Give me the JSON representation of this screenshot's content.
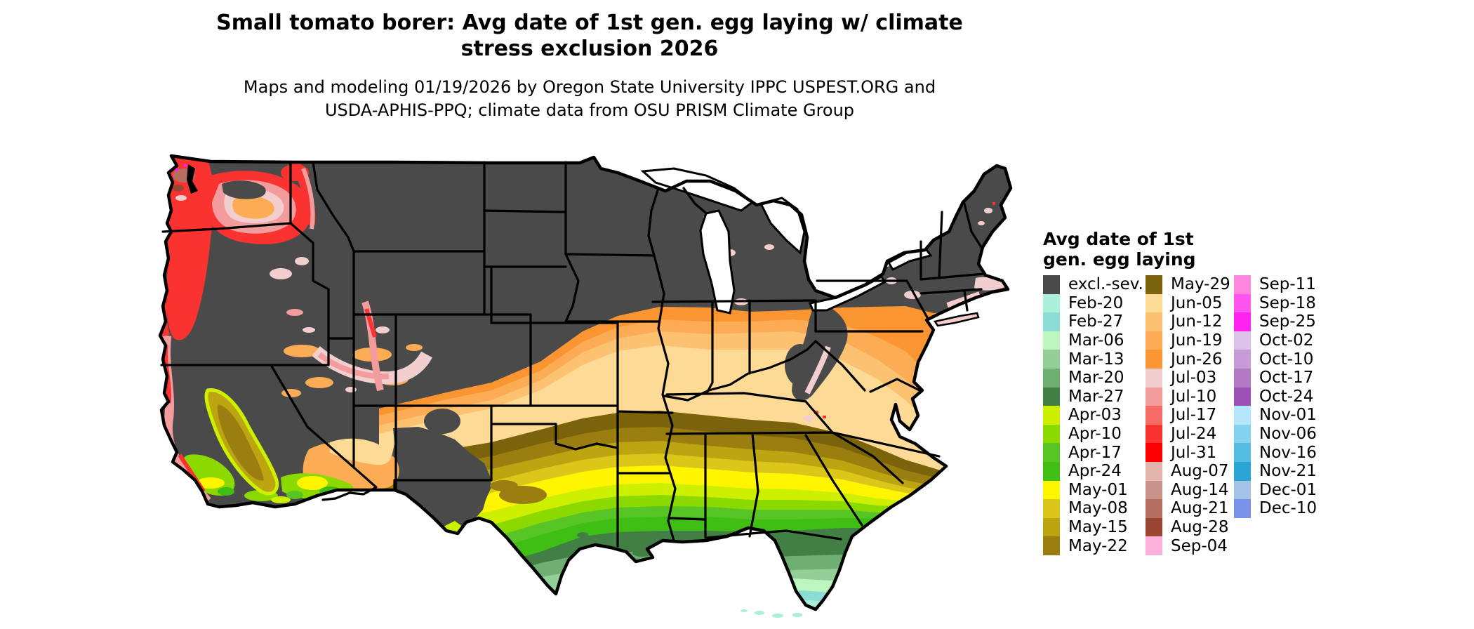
{
  "header": {
    "title_line1": "Small tomato borer: Avg date of 1st gen. egg laying w/ climate",
    "title_line2": "stress exclusion 2026",
    "subtitle_line1": "Maps and modeling 01/19/2026 by Oregon State University IPPC USPEST.ORG and",
    "subtitle_line2": "USDA-APHIS-PPQ; climate data from OSU PRISM Climate Group"
  },
  "legend": {
    "title_line1": "Avg date of 1st",
    "title_line2": "gen. egg laying",
    "columns": [
      {
        "entries": [
          {
            "label": "excl.-sev.",
            "color": "#4A4A4A"
          },
          {
            "label": "Feb-20",
            "color": "#A9EFD9"
          },
          {
            "label": "Feb-27",
            "color": "#8BDDD3"
          },
          {
            "label": "Mar-06",
            "color": "#BCF6BE"
          },
          {
            "label": "Mar-13",
            "color": "#93CF96"
          },
          {
            "label": "Mar-20",
            "color": "#70AF72"
          },
          {
            "label": "Mar-27",
            "color": "#417F44"
          },
          {
            "label": "Apr-03",
            "color": "#CCF000"
          },
          {
            "label": "Apr-10",
            "color": "#8CD900"
          },
          {
            "label": "Apr-17",
            "color": "#58C526"
          },
          {
            "label": "Apr-24",
            "color": "#3FBF13"
          },
          {
            "label": "May-01",
            "color": "#FFF500"
          },
          {
            "label": "May-08",
            "color": "#DCC61A"
          },
          {
            "label": "May-15",
            "color": "#BCA511"
          },
          {
            "label": "May-22",
            "color": "#9A7F10"
          }
        ]
      },
      {
        "entries": [
          {
            "label": "May-29",
            "color": "#7A630A"
          },
          {
            "label": "Jun-05",
            "color": "#FDDB96"
          },
          {
            "label": "Jun-12",
            "color": "#FDC271"
          },
          {
            "label": "Jun-19",
            "color": "#FBAC55"
          },
          {
            "label": "Jun-26",
            "color": "#FA9531"
          },
          {
            "label": "Jul-03",
            "color": "#F2CECF"
          },
          {
            "label": "Jul-10",
            "color": "#F29C9E"
          },
          {
            "label": "Jul-17",
            "color": "#F76B67"
          },
          {
            "label": "Jul-24",
            "color": "#FB3330"
          },
          {
            "label": "Jul-31",
            "color": "#FF0000"
          },
          {
            "label": "Aug-07",
            "color": "#E2B6AC"
          },
          {
            "label": "Aug-14",
            "color": "#C9928A"
          },
          {
            "label": "Aug-21",
            "color": "#B56F60"
          },
          {
            "label": "Aug-28",
            "color": "#9B4632"
          },
          {
            "label": "Sep-04",
            "color": "#FDB0DC"
          }
        ]
      },
      {
        "entries": [
          {
            "label": "Sep-11",
            "color": "#FF85DD"
          },
          {
            "label": "Sep-18",
            "color": "#FF55EE"
          },
          {
            "label": "Sep-25",
            "color": "#FF22F0"
          },
          {
            "label": "Oct-02",
            "color": "#DCC2E8"
          },
          {
            "label": "Oct-10",
            "color": "#C79BD6"
          },
          {
            "label": "Oct-17",
            "color": "#B279C4"
          },
          {
            "label": "Oct-24",
            "color": "#9C4FB5"
          },
          {
            "label": "Nov-01",
            "color": "#B5E6FB"
          },
          {
            "label": "Nov-06",
            "color": "#85D2EE"
          },
          {
            "label": "Nov-16",
            "color": "#55BCE2"
          },
          {
            "label": "Nov-21",
            "color": "#2BA5D6"
          },
          {
            "label": "Dec-01",
            "color": "#A4C2E6"
          },
          {
            "label": "Dec-10",
            "color": "#7B92EA"
          }
        ]
      }
    ]
  },
  "map": {
    "excluded_color": "#4A4A4A",
    "state_border_color": "#000000",
    "water_color": "#FFFFFF"
  }
}
